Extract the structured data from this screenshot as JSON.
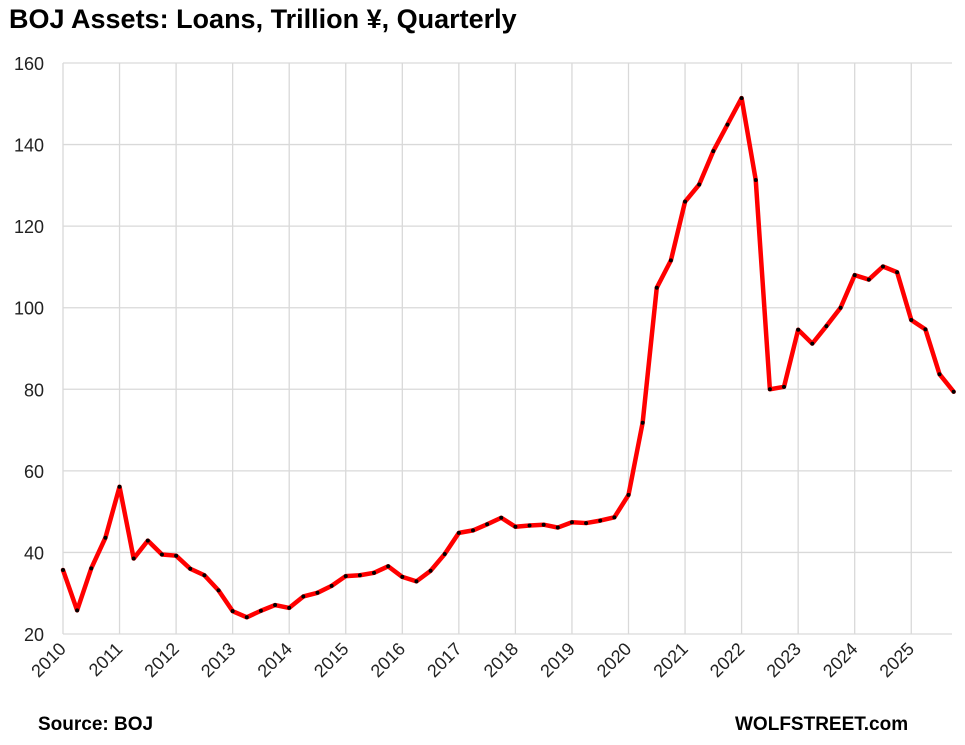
{
  "chart_data": {
    "type": "line",
    "title": "BOJ Assets: Loans, Trillion ¥, Quarterly",
    "xlabel": "",
    "ylabel": "",
    "source": "Source: BOJ",
    "brand": "WOLFSTREET.com",
    "ylim": [
      20,
      160
    ],
    "yticks": [
      20,
      40,
      60,
      80,
      100,
      120,
      140,
      160
    ],
    "xticks": [
      "2010",
      "2011",
      "2012",
      "2013",
      "2014",
      "2015",
      "2016",
      "2017",
      "2018",
      "2019",
      "2020",
      "2021",
      "2022",
      "2023",
      "2024",
      "2025"
    ],
    "grid": true,
    "colors": {
      "line": "#ff0000",
      "marker": "#000000",
      "grid": "#d9d9d9"
    },
    "series": [
      {
        "x": [
          "2010-Q1",
          "2010-Q2",
          "2010-Q3",
          "2010-Q4",
          "2011-Q1",
          "2011-Q2",
          "2011-Q3",
          "2011-Q4",
          "2012-Q1",
          "2012-Q2",
          "2012-Q3",
          "2012-Q4",
          "2013-Q1",
          "2013-Q2",
          "2013-Q3",
          "2013-Q4",
          "2014-Q1",
          "2014-Q2",
          "2014-Q3",
          "2014-Q4",
          "2015-Q1",
          "2015-Q2",
          "2015-Q3",
          "2015-Q4",
          "2016-Q1",
          "2016-Q2",
          "2016-Q3",
          "2016-Q4",
          "2017-Q1",
          "2017-Q2",
          "2017-Q3",
          "2017-Q4",
          "2018-Q1",
          "2018-Q2",
          "2018-Q3",
          "2018-Q4",
          "2019-Q1",
          "2019-Q2",
          "2019-Q3",
          "2019-Q4",
          "2020-Q1",
          "2020-Q2",
          "2020-Q3",
          "2020-Q4",
          "2021-Q1",
          "2021-Q2",
          "2021-Q3",
          "2021-Q4",
          "2022-Q1",
          "2022-Q2",
          "2022-Q3",
          "2022-Q4",
          "2023-Q1",
          "2023-Q2",
          "2023-Q3",
          "2023-Q4",
          "2024-Q1",
          "2024-Q2",
          "2024-Q3",
          "2024-Q4",
          "2025-Q1",
          "2025-Q2",
          "2025-Q3",
          "2025-Q4"
        ],
        "values": [
          35.7,
          25.8,
          36.1,
          43.6,
          56.1,
          38.5,
          42.9,
          39.5,
          39.2,
          36.0,
          34.4,
          30.7,
          25.6,
          24.1,
          25.7,
          27.1,
          26.4,
          29.2,
          30.1,
          31.8,
          34.2,
          34.4,
          35.0,
          36.6,
          34.0,
          32.9,
          35.5,
          39.6,
          44.8,
          45.4,
          46.9,
          48.5,
          46.3,
          46.6,
          46.8,
          46.1,
          47.4,
          47.2,
          47.8,
          48.6,
          54.1,
          71.8,
          104.9,
          111.6,
          126.0,
          130.2,
          138.4,
          144.9,
          151.4,
          131.3,
          80.0,
          80.6,
          94.6,
          91.2,
          95.5,
          100.0,
          108.0,
          106.9,
          110.1,
          108.7,
          97.0,
          94.7,
          83.7,
          79.4
        ]
      }
    ]
  }
}
